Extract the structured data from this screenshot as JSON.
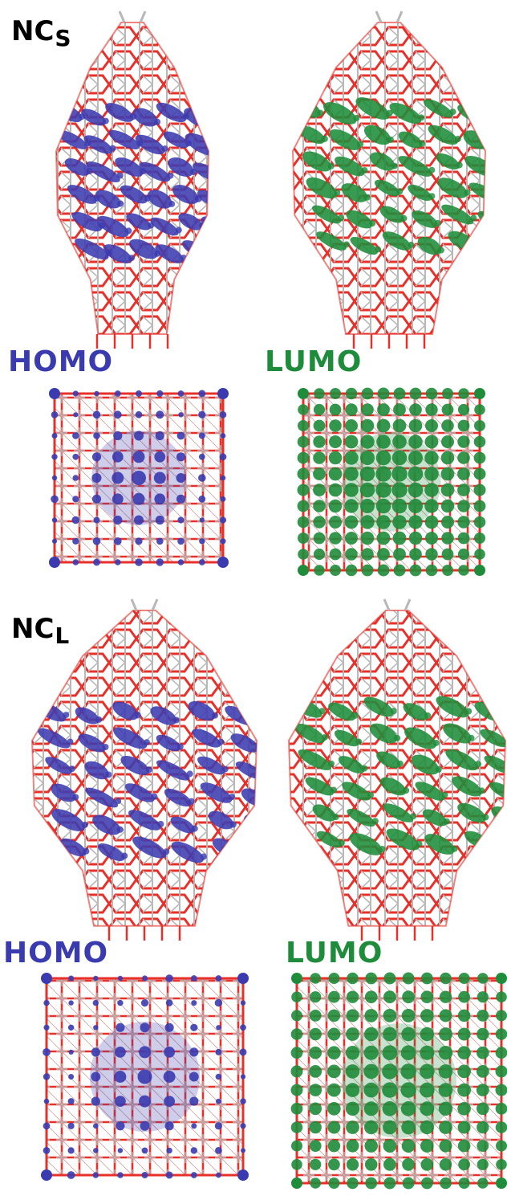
{
  "figure": {
    "panels": [
      {
        "id": "ncs",
        "label_main": "NC",
        "label_sub": "S",
        "homo_label": "HOMO",
        "lumo_label": "LUMO"
      },
      {
        "id": "ncl",
        "label_main": "NC",
        "label_sub": "L",
        "homo_label": "HOMO",
        "lumo_label": "LUMO"
      }
    ],
    "colors": {
      "homo": "#3b3bb0",
      "lumo": "#1e8c3a",
      "bond_red": "#e8302a",
      "bond_gray": "#b8b8b8",
      "label_text": "#000000"
    },
    "icons": {
      "side_view": "nanocrystal-side-view",
      "top_view": "nanocrystal-top-view"
    }
  }
}
